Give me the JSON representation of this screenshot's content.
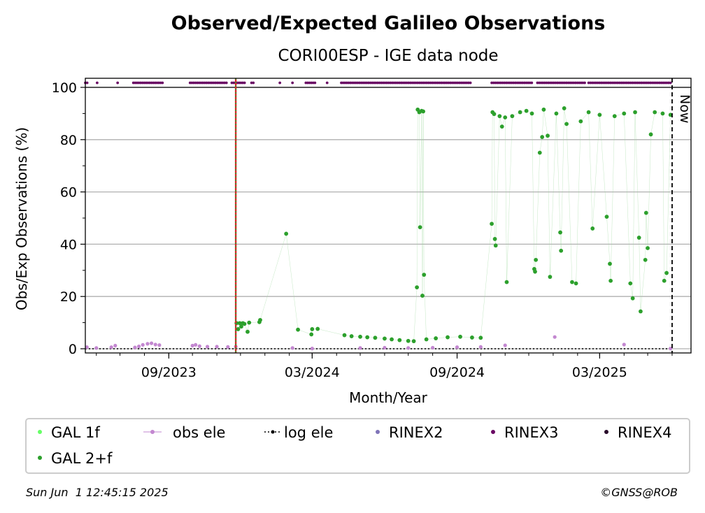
{
  "chart_data": {
    "type": "scatter",
    "title": "Observed/Expected Galileo Observations",
    "subtitle": "CORI00ESP - IGE data node",
    "xlabel": "Month/Year",
    "ylabel": "Obs/Exp Observations (%)",
    "ylim": [
      0,
      100
    ],
    "xlim": [
      "2023-05-18",
      "2025-06-25"
    ],
    "x_ticks": [
      "09/2023",
      "03/2024",
      "09/2024",
      "03/2025"
    ],
    "y_ticks": [
      "0",
      "20",
      "40",
      "60",
      "80",
      "100"
    ],
    "grid": "y-major",
    "vertical_lines": [
      {
        "date": "2023-11-25",
        "style": "red-green-dotted",
        "label": ""
      },
      {
        "date": "2025-06-01",
        "style": "black-dashed",
        "label": "Now"
      }
    ],
    "colors": {
      "gal_1f": "#66ff66",
      "gal_2f": "#2ca02c",
      "obs_ele": "#c387d0",
      "log_ele": "#000000",
      "rinex2": "#7f74b8",
      "rinex3": "#6a0a64",
      "rinex4": "#280a2a"
    },
    "series": [
      {
        "name": "GAL 2+f",
        "points": [
          [
            "2023-11-26",
            9.8
          ],
          [
            "2023-11-28",
            7.5
          ],
          [
            "2023-11-30",
            9.8
          ],
          [
            "2023-12-02",
            8.5
          ],
          [
            "2023-12-04",
            9.8
          ],
          [
            "2023-12-06",
            9.5
          ],
          [
            "2023-12-10",
            6.5
          ],
          [
            "2023-12-12",
            10.0
          ],
          [
            "2023-12-25",
            10.2
          ],
          [
            "2023-12-26",
            11.0
          ],
          [
            "2024-01-28",
            44.0
          ],
          [
            "2024-02-12",
            7.3
          ],
          [
            "2024-02-29",
            5.5
          ],
          [
            "2024-03-01",
            7.5
          ],
          [
            "2024-03-08",
            7.6
          ],
          [
            "2024-04-11",
            5.2
          ],
          [
            "2024-04-20",
            4.8
          ],
          [
            "2024-05-01",
            4.6
          ],
          [
            "2024-05-10",
            4.4
          ],
          [
            "2024-05-20",
            4.2
          ],
          [
            "2024-06-01",
            3.9
          ],
          [
            "2024-06-10",
            3.6
          ],
          [
            "2024-06-20",
            3.3
          ],
          [
            "2024-07-01",
            3.0
          ],
          [
            "2024-07-08",
            2.9
          ],
          [
            "2024-07-12",
            23.5
          ],
          [
            "2024-07-13",
            91.5
          ],
          [
            "2024-07-15",
            90.5
          ],
          [
            "2024-07-16",
            46.5
          ],
          [
            "2024-07-18",
            91.0
          ],
          [
            "2024-07-19",
            20.3
          ],
          [
            "2024-07-20",
            90.8
          ],
          [
            "2024-07-21",
            28.3
          ],
          [
            "2024-07-24",
            3.6
          ],
          [
            "2024-08-05",
            4.0
          ],
          [
            "2024-08-20",
            4.4
          ],
          [
            "2024-09-05",
            4.6
          ],
          [
            "2024-09-20",
            4.3
          ],
          [
            "2024-10-01",
            4.2
          ],
          [
            "2024-10-15",
            47.8
          ],
          [
            "2024-10-16",
            90.5
          ],
          [
            "2024-10-18",
            89.8
          ],
          [
            "2024-10-19",
            42.0
          ],
          [
            "2024-10-20",
            39.5
          ],
          [
            "2024-10-25",
            89.0
          ],
          [
            "2024-10-28",
            85.0
          ],
          [
            "2024-11-01",
            88.5
          ],
          [
            "2024-11-03",
            25.5
          ],
          [
            "2024-11-10",
            89.0
          ],
          [
            "2024-11-20",
            90.5
          ],
          [
            "2024-11-28",
            91.0
          ],
          [
            "2024-12-05",
            90.0
          ],
          [
            "2024-12-08",
            30.5
          ],
          [
            "2024-12-09",
            29.5
          ],
          [
            "2024-12-10",
            34.0
          ],
          [
            "2024-12-15",
            75.0
          ],
          [
            "2024-12-18",
            81.0
          ],
          [
            "2024-12-20",
            91.5
          ],
          [
            "2024-12-25",
            81.5
          ],
          [
            "2024-12-28",
            27.5
          ],
          [
            "2025-01-05",
            90.0
          ],
          [
            "2025-01-10",
            44.5
          ],
          [
            "2025-01-11",
            37.5
          ],
          [
            "2025-01-15",
            92.0
          ],
          [
            "2025-01-18",
            86.0
          ],
          [
            "2025-01-25",
            25.5
          ],
          [
            "2025-01-30",
            25.0
          ],
          [
            "2025-02-05",
            87.0
          ],
          [
            "2025-02-15",
            90.5
          ],
          [
            "2025-02-20",
            46.0
          ],
          [
            "2025-03-01",
            89.5
          ],
          [
            "2025-03-10",
            50.5
          ],
          [
            "2025-03-14",
            32.5
          ],
          [
            "2025-03-15",
            26.0
          ],
          [
            "2025-03-20",
            89.0
          ],
          [
            "2025-04-01",
            90.0
          ],
          [
            "2025-04-09",
            25.0
          ],
          [
            "2025-04-12",
            19.3
          ],
          [
            "2025-04-15",
            90.5
          ],
          [
            "2025-04-20",
            42.5
          ],
          [
            "2025-04-22",
            14.3
          ],
          [
            "2025-04-28",
            34.0
          ],
          [
            "2025-04-29",
            52.0
          ],
          [
            "2025-05-01",
            38.5
          ],
          [
            "2025-05-05",
            82.0
          ],
          [
            "2025-05-10",
            90.5
          ],
          [
            "2025-05-20",
            90.0
          ],
          [
            "2025-05-22",
            26.0
          ],
          [
            "2025-05-25",
            29.0
          ],
          [
            "2025-05-30",
            89.5
          ]
        ]
      },
      {
        "name": "obs ele",
        "points": [
          [
            "2023-05-20",
            0.6
          ],
          [
            "2023-06-01",
            0.3
          ],
          [
            "2023-06-20",
            0.6
          ],
          [
            "2023-06-25",
            1.2
          ],
          [
            "2023-07-20",
            0.5
          ],
          [
            "2023-07-25",
            0.9
          ],
          [
            "2023-07-30",
            1.5
          ],
          [
            "2023-08-05",
            1.9
          ],
          [
            "2023-08-10",
            2.1
          ],
          [
            "2023-08-15",
            1.6
          ],
          [
            "2023-08-20",
            1.4
          ],
          [
            "2023-10-01",
            1.2
          ],
          [
            "2023-10-05",
            1.5
          ],
          [
            "2023-10-10",
            1.0
          ],
          [
            "2023-10-20",
            0.8
          ],
          [
            "2023-11-01",
            0.8
          ],
          [
            "2023-11-15",
            0.7
          ],
          [
            "2023-11-25",
            0.8
          ],
          [
            "2024-02-05",
            0.3
          ],
          [
            "2024-03-01",
            0.1
          ],
          [
            "2024-05-01",
            0.3
          ],
          [
            "2024-06-01",
            0.4
          ],
          [
            "2024-07-01",
            0.3
          ],
          [
            "2024-08-01",
            0.4
          ],
          [
            "2024-09-01",
            0.6
          ],
          [
            "2024-10-01",
            0.7
          ],
          [
            "2024-11-01",
            1.3
          ],
          [
            "2025-01-03",
            4.5
          ],
          [
            "2025-04-01",
            1.6
          ],
          [
            "2025-05-30",
            0.1
          ]
        ]
      },
      {
        "name": "RINEX3",
        "ranges": [
          [
            "2023-05-18",
            "2023-05-21"
          ],
          [
            "2023-06-02",
            "2023-06-04"
          ],
          [
            "2023-06-28",
            "2023-06-30"
          ],
          [
            "2023-07-18",
            "2023-08-25"
          ],
          [
            "2023-09-28",
            "2023-11-15"
          ],
          [
            "2023-11-20",
            "2023-12-08"
          ],
          [
            "2023-12-15",
            "2023-12-18"
          ],
          [
            "2024-01-20",
            "2024-01-22"
          ],
          [
            "2024-02-05",
            "2024-02-07"
          ],
          [
            "2024-02-22",
            "2024-03-05"
          ],
          [
            "2024-03-20",
            "2024-03-22"
          ],
          [
            "2024-04-07",
            "2024-09-20"
          ],
          [
            "2024-10-15",
            "2024-12-05"
          ],
          [
            "2024-12-12",
            "2025-02-10"
          ],
          [
            "2025-02-15",
            "2025-06-01"
          ]
        ]
      }
    ],
    "legend": {
      "placement": "bottom",
      "entries": [
        "GAL 1f",
        "obs ele",
        "log ele",
        "RINEX2",
        "RINEX3",
        "RINEX4",
        "GAL 2+f"
      ]
    }
  },
  "footer": {
    "timestamp": "Sun Jun  1 12:45:15 2025",
    "copyright": "©GNSS@ROB"
  }
}
